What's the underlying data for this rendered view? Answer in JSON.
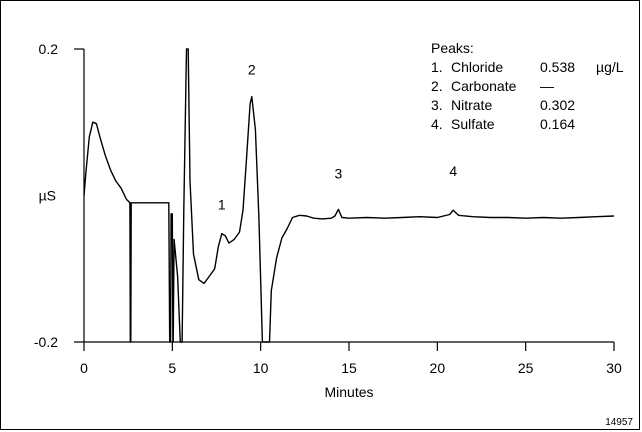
{
  "chart_data": {
    "type": "line",
    "xlabel": "Minutes",
    "ylabel": "µS",
    "xlim": [
      0,
      30
    ],
    "ylim": [
      -0.2,
      0.2
    ],
    "x_ticks": [
      0,
      5,
      10,
      15,
      20,
      25,
      30
    ],
    "y_ticks": [
      {
        "value": 0.2,
        "label": "0.2"
      },
      {
        "value": -0.2,
        "label": "-0.2"
      }
    ],
    "grid": false,
    "figure_id": "14957",
    "legend": {
      "title": "Peaks:",
      "unit": "µg/L",
      "entries": [
        {
          "num": "1.",
          "name": "Chloride",
          "value": "0.538"
        },
        {
          "num": "2.",
          "name": "Carbonate",
          "value": "—"
        },
        {
          "num": "3.",
          "name": "Nitrate",
          "value": "0.302"
        },
        {
          "num": "4.",
          "name": "Sulfate",
          "value": "0.164"
        }
      ]
    },
    "peak_labels": [
      {
        "label": "1",
        "x": 7.8,
        "y": -0.03
      },
      {
        "label": "2",
        "x": 9.5,
        "y": 0.154
      },
      {
        "label": "3",
        "x": 14.4,
        "y": 0.012
      },
      {
        "label": "4",
        "x": 20.9,
        "y": 0.016
      }
    ],
    "series": [
      {
        "points": [
          [
            0,
            0.0
          ],
          [
            0.1,
            0.03
          ],
          [
            0.3,
            0.08
          ],
          [
            0.5,
            0.1
          ],
          [
            0.7,
            0.098
          ],
          [
            0.9,
            0.08
          ],
          [
            1.2,
            0.055
          ],
          [
            1.5,
            0.035
          ],
          [
            1.8,
            0.02
          ],
          [
            2.1,
            0.01
          ],
          [
            2.4,
            -0.005
          ],
          [
            2.6,
            -0.01
          ],
          [
            2.62,
            -0.2
          ],
          [
            2.65,
            -0.2
          ],
          [
            2.67,
            -0.01
          ],
          [
            4.8,
            -0.01
          ],
          [
            4.85,
            -0.2
          ],
          [
            4.9,
            -0.2
          ],
          [
            4.93,
            -0.025
          ],
          [
            5.0,
            -0.025
          ],
          [
            5.03,
            -0.2
          ],
          [
            5.05,
            -0.2
          ],
          [
            5.1,
            -0.06
          ],
          [
            5.3,
            -0.11
          ],
          [
            5.45,
            -0.2
          ],
          [
            5.55,
            -0.2
          ],
          [
            5.65,
            -0.02
          ],
          [
            5.8,
            0.2
          ],
          [
            5.9,
            0.2
          ],
          [
            6.0,
            0.02
          ],
          [
            6.2,
            -0.08
          ],
          [
            6.5,
            -0.115
          ],
          [
            6.8,
            -0.12
          ],
          [
            7.1,
            -0.11
          ],
          [
            7.4,
            -0.1
          ],
          [
            7.6,
            -0.07
          ],
          [
            7.8,
            -0.052
          ],
          [
            8.0,
            -0.055
          ],
          [
            8.2,
            -0.065
          ],
          [
            8.5,
            -0.06
          ],
          [
            8.8,
            -0.05
          ],
          [
            9.0,
            -0.02
          ],
          [
            9.2,
            0.05
          ],
          [
            9.4,
            0.125
          ],
          [
            9.5,
            0.135
          ],
          [
            9.7,
            0.09
          ],
          [
            9.9,
            -0.03
          ],
          [
            10.1,
            -0.2
          ],
          [
            10.5,
            -0.2
          ],
          [
            10.6,
            -0.13
          ],
          [
            10.9,
            -0.085
          ],
          [
            11.2,
            -0.058
          ],
          [
            11.5,
            -0.045
          ],
          [
            11.8,
            -0.03
          ],
          [
            12.2,
            -0.027
          ],
          [
            12.6,
            -0.028
          ],
          [
            13.0,
            -0.031
          ],
          [
            13.5,
            -0.032
          ],
          [
            14.0,
            -0.031
          ],
          [
            14.2,
            -0.028
          ],
          [
            14.4,
            -0.019
          ],
          [
            14.6,
            -0.03
          ],
          [
            15.0,
            -0.031
          ],
          [
            16.0,
            -0.03
          ],
          [
            17.0,
            -0.031
          ],
          [
            18.0,
            -0.03
          ],
          [
            19.0,
            -0.029
          ],
          [
            20.0,
            -0.03
          ],
          [
            20.7,
            -0.026
          ],
          [
            20.9,
            -0.02
          ],
          [
            21.2,
            -0.027
          ],
          [
            22.0,
            -0.029
          ],
          [
            23.0,
            -0.03
          ],
          [
            24.0,
            -0.03
          ],
          [
            25.0,
            -0.031
          ],
          [
            26.0,
            -0.03
          ],
          [
            27.0,
            -0.031
          ],
          [
            28.0,
            -0.03
          ],
          [
            29.0,
            -0.029
          ],
          [
            30.0,
            -0.028
          ]
        ]
      }
    ]
  }
}
